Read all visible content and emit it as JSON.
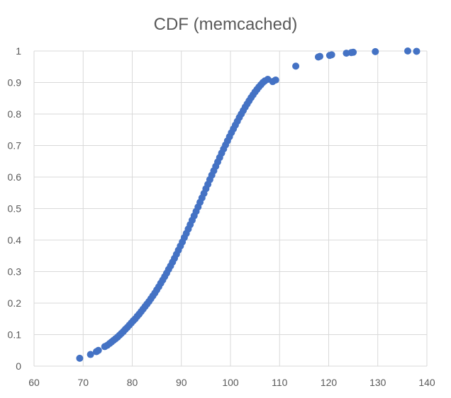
{
  "chart_data": {
    "type": "scatter",
    "title": "CDF (memcached)",
    "xlabel": "",
    "ylabel": "",
    "xlim": [
      60,
      140
    ],
    "ylim": [
      0,
      1
    ],
    "x_ticks": [
      60,
      70,
      80,
      90,
      100,
      110,
      120,
      130,
      140
    ],
    "y_ticks": [
      0,
      0.1,
      0.2,
      0.3,
      0.4,
      0.5,
      0.6,
      0.7,
      0.8,
      0.9,
      1
    ],
    "x_tick_labels": [
      "60",
      "70",
      "80",
      "90",
      "100",
      "110",
      "120",
      "130",
      "140"
    ],
    "y_tick_labels": [
      "0",
      "0.1",
      "0.2",
      "0.3",
      "0.4",
      "0.5",
      "0.6",
      "0.7",
      "0.8",
      "0.9",
      "1"
    ],
    "grid": true,
    "color": "#4472c4",
    "series": [
      {
        "points": [
          [
            69.3,
            0.025
          ],
          [
            71.5,
            0.037
          ],
          [
            72.7,
            0.046
          ],
          [
            73.1,
            0.05
          ],
          [
            74.4,
            0.062
          ],
          [
            74.9,
            0.066
          ],
          [
            75.4,
            0.072
          ],
          [
            75.8,
            0.077
          ],
          [
            76.2,
            0.082
          ],
          [
            76.6,
            0.087
          ],
          [
            77.0,
            0.092
          ],
          [
            77.4,
            0.098
          ],
          [
            77.8,
            0.104
          ],
          [
            78.2,
            0.11
          ],
          [
            78.6,
            0.117
          ],
          [
            79.0,
            0.123
          ],
          [
            79.4,
            0.13
          ],
          [
            79.8,
            0.137
          ],
          [
            80.2,
            0.144
          ],
          [
            80.6,
            0.15
          ],
          [
            81.0,
            0.158
          ],
          [
            81.4,
            0.165
          ],
          [
            81.8,
            0.173
          ],
          [
            82.2,
            0.181
          ],
          [
            82.6,
            0.189
          ],
          [
            83.0,
            0.197
          ],
          [
            83.4,
            0.205
          ],
          [
            83.8,
            0.214
          ],
          [
            84.2,
            0.223
          ],
          [
            84.6,
            0.232
          ],
          [
            85.0,
            0.242
          ],
          [
            85.4,
            0.252
          ],
          [
            85.8,
            0.263
          ],
          [
            86.2,
            0.273
          ],
          [
            86.6,
            0.284
          ],
          [
            87.0,
            0.295
          ],
          [
            87.4,
            0.307
          ],
          [
            87.8,
            0.318
          ],
          [
            88.2,
            0.33
          ],
          [
            88.6,
            0.342
          ],
          [
            89.0,
            0.355
          ],
          [
            89.4,
            0.368
          ],
          [
            89.8,
            0.381
          ],
          [
            90.2,
            0.394
          ],
          [
            90.6,
            0.408
          ],
          [
            91.0,
            0.421
          ],
          [
            91.4,
            0.435
          ],
          [
            91.8,
            0.449
          ],
          [
            92.2,
            0.463
          ],
          [
            92.6,
            0.477
          ],
          [
            93.0,
            0.491
          ],
          [
            93.4,
            0.505
          ],
          [
            93.8,
            0.52
          ],
          [
            94.2,
            0.534
          ],
          [
            94.6,
            0.548
          ],
          [
            95.0,
            0.563
          ],
          [
            95.4,
            0.577
          ],
          [
            95.8,
            0.592
          ],
          [
            96.2,
            0.606
          ],
          [
            96.6,
            0.62
          ],
          [
            97.0,
            0.634
          ],
          [
            97.4,
            0.648
          ],
          [
            97.8,
            0.662
          ],
          [
            98.2,
            0.676
          ],
          [
            98.6,
            0.689
          ],
          [
            99.0,
            0.702
          ],
          [
            99.4,
            0.715
          ],
          [
            99.8,
            0.728
          ],
          [
            100.2,
            0.741
          ],
          [
            100.6,
            0.753
          ],
          [
            101.0,
            0.765
          ],
          [
            101.4,
            0.777
          ],
          [
            101.8,
            0.789
          ],
          [
            102.2,
            0.8
          ],
          [
            102.6,
            0.811
          ],
          [
            103.0,
            0.822
          ],
          [
            103.4,
            0.832
          ],
          [
            103.8,
            0.842
          ],
          [
            104.2,
            0.852
          ],
          [
            104.6,
            0.861
          ],
          [
            105.0,
            0.87
          ],
          [
            105.4,
            0.878
          ],
          [
            105.8,
            0.886
          ],
          [
            106.2,
            0.893
          ],
          [
            106.6,
            0.9
          ],
          [
            107.0,
            0.905
          ],
          [
            107.6,
            0.91
          ],
          [
            108.6,
            0.903
          ],
          [
            109.2,
            0.908
          ],
          [
            113.3,
            0.952
          ],
          [
            117.9,
            0.981
          ],
          [
            118.2,
            0.983
          ],
          [
            120.2,
            0.986
          ],
          [
            120.6,
            0.988
          ],
          [
            123.6,
            0.993
          ],
          [
            124.6,
            0.995
          ],
          [
            125.0,
            0.996
          ],
          [
            129.5,
            0.998
          ],
          [
            136.1,
            1.0
          ],
          [
            137.9,
            0.999
          ]
        ]
      }
    ]
  }
}
